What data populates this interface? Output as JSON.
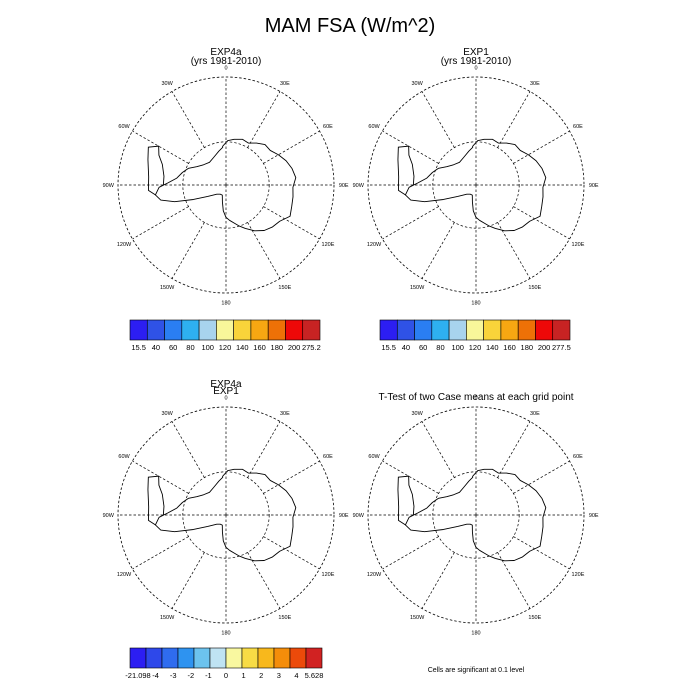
{
  "main_title": "MAM FSA (W/m^2)",
  "panels": [
    {
      "title": [
        "EXP4a",
        "(yrs 1981-2010)"
      ]
    },
    {
      "title": [
        "EXP1",
        "(yrs 1981-2010)"
      ]
    },
    {
      "title": [
        "EXP4a",
        "EXP1"
      ]
    },
    {
      "title": [
        "T-Test of two Case means at each grid point"
      ]
    }
  ],
  "lon_labels": [
    "0",
    "30E",
    "60E",
    "90E",
    "120E",
    "150E",
    "180",
    "150W",
    "120W",
    "90W",
    "60W",
    "30W"
  ],
  "colorbars": [
    {
      "colors": [
        "#2c1ef2",
        "#2f52e6",
        "#2a7ef2",
        "#2eb0f0",
        "#a8d4ee",
        "#f8f79a",
        "#f9d43a",
        "#f7a712",
        "#ee7107",
        "#ee0808",
        "#c72323"
      ],
      "labels": [
        "15.5",
        "40",
        "60",
        "80",
        "100",
        "120",
        "140",
        "160",
        "180",
        "200",
        "275.2"
      ]
    },
    {
      "colors": [
        "#2c1ef2",
        "#2f52e6",
        "#2a7ef2",
        "#2eb0f0",
        "#a8d4ee",
        "#f8f79a",
        "#f9d43a",
        "#f7a712",
        "#ee7107",
        "#ee0808",
        "#c72323"
      ],
      "labels": [
        "15.5",
        "40",
        "60",
        "80",
        "100",
        "120",
        "140",
        "160",
        "180",
        "200",
        "277.5"
      ]
    },
    {
      "colors": [
        "#2c1ef2",
        "#2e48ea",
        "#2f6cef",
        "#2e93f0",
        "#6cc3ee",
        "#bfe3f3",
        "#f9f8a0",
        "#f8dc45",
        "#f8b81c",
        "#f48d0a",
        "#ec4a0a",
        "#d12222"
      ],
      "labels": [
        "-21.098",
        "-4",
        "-3",
        "-2",
        "-1",
        "0",
        "1",
        "2",
        "3",
        "4",
        "5.628"
      ]
    }
  ],
  "footnote": "Cells are significant at 0.1 level"
}
